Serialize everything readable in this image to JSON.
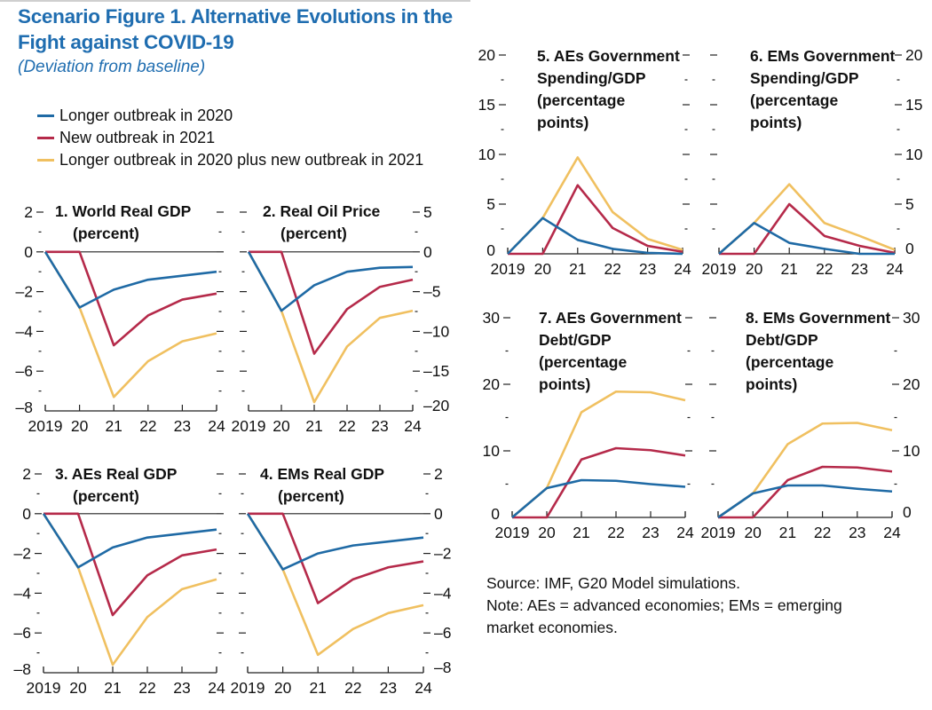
{
  "figure": {
    "title_line1": "Scenario Figure 1. Alternative Evolutions in the",
    "title_line2": "Fight against COVID-19",
    "subtitle": "(Deviation from baseline)",
    "source": "Source: IMF, G20 Model simulations.",
    "note_line1": "Note: AEs = advanced economies; EMs = emerging",
    "note_line2": "market economies."
  },
  "legend": [
    {
      "label": "Longer outbreak in 2020",
      "color": "#1f6aa5"
    },
    {
      "label": "New outbreak in 2021",
      "color": "#b52a4a"
    },
    {
      "label": "Longer outbreak in 2020 plus new outbreak in 2021",
      "color": "#f0c060"
    }
  ],
  "chart_data": [
    {
      "type": "line",
      "title": [
        "1. World Real GDP",
        "(percent)"
      ],
      "categories": [
        "2019",
        "20",
        "21",
        "22",
        "23",
        "24"
      ],
      "ylim": [
        -8,
        2
      ],
      "yticks": [
        2,
        0,
        -2,
        -4,
        -6,
        -8
      ],
      "ytick_side": "left",
      "series": [
        {
          "name": "Longer outbreak in 2020",
          "values": [
            0,
            -2.8,
            -1.9,
            -1.4,
            -1.2,
            -1.0
          ]
        },
        {
          "name": "New outbreak in 2021",
          "values": [
            0,
            0,
            -4.7,
            -3.2,
            -2.4,
            -2.1
          ]
        },
        {
          "name": "Longer outbreak in 2020 plus new outbreak in 2021",
          "values": [
            0,
            -2.8,
            -7.3,
            -5.5,
            -4.5,
            -4.1
          ]
        }
      ]
    },
    {
      "type": "line",
      "title": [
        "2. Real Oil Price",
        "(percent)"
      ],
      "categories": [
        "2019",
        "20",
        "21",
        "22",
        "23",
        "24"
      ],
      "ylim": [
        -20,
        5
      ],
      "yticks": [
        5,
        0,
        -5,
        -10,
        -15,
        -20
      ],
      "ytick_side": "right",
      "series": [
        {
          "name": "Longer outbreak in 2020",
          "values": [
            0,
            -7.4,
            -4.2,
            -2.5,
            -2.0,
            -1.9
          ]
        },
        {
          "name": "New outbreak in 2021",
          "values": [
            0,
            0,
            -12.8,
            -7.2,
            -4.4,
            -3.5
          ]
        },
        {
          "name": "Longer outbreak in 2020 plus new outbreak in 2021",
          "values": [
            0,
            -7.4,
            -18.9,
            -11.9,
            -8.3,
            -7.4
          ]
        }
      ]
    },
    {
      "type": "line",
      "title": [
        "3. AEs Real GDP",
        "(percent)"
      ],
      "categories": [
        "2019",
        "20",
        "21",
        "22",
        "23",
        "24"
      ],
      "ylim": [
        -8,
        2
      ],
      "yticks": [
        2,
        0,
        -2,
        -4,
        -6,
        -8
      ],
      "ytick_side": "left",
      "series": [
        {
          "name": "Longer outbreak in 2020",
          "values": [
            0,
            -2.7,
            -1.7,
            -1.2,
            -1.0,
            -0.8
          ]
        },
        {
          "name": "New outbreak in 2021",
          "values": [
            0,
            0,
            -5.1,
            -3.1,
            -2.1,
            -1.8
          ]
        },
        {
          "name": "Longer outbreak in 2020 plus new outbreak in 2021",
          "values": [
            0,
            -2.7,
            -7.6,
            -5.2,
            -3.8,
            -3.3
          ]
        }
      ]
    },
    {
      "type": "line",
      "title": [
        "4. EMs Real GDP",
        "(percent)"
      ],
      "categories": [
        "2019",
        "20",
        "21",
        "22",
        "23",
        "24"
      ],
      "ylim": [
        -8,
        2
      ],
      "yticks": [
        2,
        0,
        -2,
        -4,
        -6,
        -8
      ],
      "ytick_side": "right",
      "series": [
        {
          "name": "Longer outbreak in 2020",
          "values": [
            0,
            -2.8,
            -2.0,
            -1.6,
            -1.4,
            -1.2
          ]
        },
        {
          "name": "New outbreak in 2021",
          "values": [
            0,
            0,
            -4.5,
            -3.3,
            -2.7,
            -2.4
          ]
        },
        {
          "name": "Longer outbreak in 2020 plus new outbreak in 2021",
          "values": [
            0,
            -2.8,
            -7.1,
            -5.8,
            -5.0,
            -4.6
          ]
        }
      ]
    },
    {
      "type": "line",
      "title": [
        "5. AEs Government",
        "Spending/GDP",
        "(percentage",
        "points)"
      ],
      "categories": [
        "2019",
        "20",
        "21",
        "22",
        "23",
        "24"
      ],
      "ylim": [
        0,
        20
      ],
      "yticks": [
        20,
        15,
        10,
        5,
        0
      ],
      "ytick_side": "left",
      "series": [
        {
          "name": "Longer outbreak in 2020",
          "values": [
            0,
            3.6,
            1.4,
            0.5,
            0.1,
            0.0
          ]
        },
        {
          "name": "New outbreak in 2021",
          "values": [
            0,
            0,
            6.9,
            2.6,
            0.8,
            0.2
          ]
        },
        {
          "name": "Longer outbreak in 2020 plus new outbreak in 2021",
          "values": [
            0,
            3.6,
            9.7,
            4.2,
            1.5,
            0.4
          ]
        }
      ]
    },
    {
      "type": "line",
      "title": [
        "6. EMs Government",
        "Spending/GDP",
        "(percentage",
        "points)"
      ],
      "categories": [
        "2019",
        "20",
        "21",
        "22",
        "23",
        "24"
      ],
      "ylim": [
        0,
        20
      ],
      "yticks": [
        20,
        15,
        10,
        5,
        0
      ],
      "ytick_side": "right",
      "series": [
        {
          "name": "Longer outbreak in 2020",
          "values": [
            0,
            3.1,
            1.1,
            0.5,
            0.0,
            0.0
          ]
        },
        {
          "name": "New outbreak in 2021",
          "values": [
            0,
            0,
            5.0,
            1.8,
            0.8,
            0.1
          ]
        },
        {
          "name": "Longer outbreak in 2020 plus new outbreak in 2021",
          "values": [
            0,
            3.1,
            7.0,
            3.1,
            1.8,
            0.4
          ]
        }
      ]
    },
    {
      "type": "line",
      "title": [
        "7. AEs Government",
        "Debt/GDP",
        "(percentage",
        "points)"
      ],
      "categories": [
        "2019",
        "20",
        "21",
        "22",
        "23",
        "24"
      ],
      "ylim": [
        0,
        30
      ],
      "yticks": [
        30,
        20,
        10,
        0
      ],
      "ytick_side": "left",
      "series": [
        {
          "name": "Longer outbreak in 2020",
          "values": [
            0,
            4.4,
            5.6,
            5.5,
            5.0,
            4.6
          ]
        },
        {
          "name": "New outbreak in 2021",
          "values": [
            0,
            0,
            8.7,
            10.4,
            10.1,
            9.3
          ]
        },
        {
          "name": "Longer outbreak in 2020 plus new outbreak in 2021",
          "values": [
            0,
            4.4,
            15.8,
            18.9,
            18.8,
            17.6
          ]
        }
      ]
    },
    {
      "type": "line",
      "title": [
        "8. EMs Government",
        "Debt/GDP",
        "(percentage",
        "points)"
      ],
      "categories": [
        "2019",
        "20",
        "21",
        "22",
        "23",
        "24"
      ],
      "ylim": [
        0,
        30
      ],
      "yticks": [
        30,
        20,
        10,
        0
      ],
      "ytick_side": "right",
      "series": [
        {
          "name": "Longer outbreak in 2020",
          "values": [
            0,
            3.6,
            4.8,
            4.8,
            4.3,
            3.9
          ]
        },
        {
          "name": "New outbreak in 2021",
          "values": [
            0,
            0,
            5.6,
            7.6,
            7.5,
            6.9
          ]
        },
        {
          "name": "Longer outbreak in 2020 plus new outbreak in 2021",
          "values": [
            0,
            3.6,
            11.0,
            14.1,
            14.2,
            13.1
          ]
        }
      ]
    }
  ]
}
